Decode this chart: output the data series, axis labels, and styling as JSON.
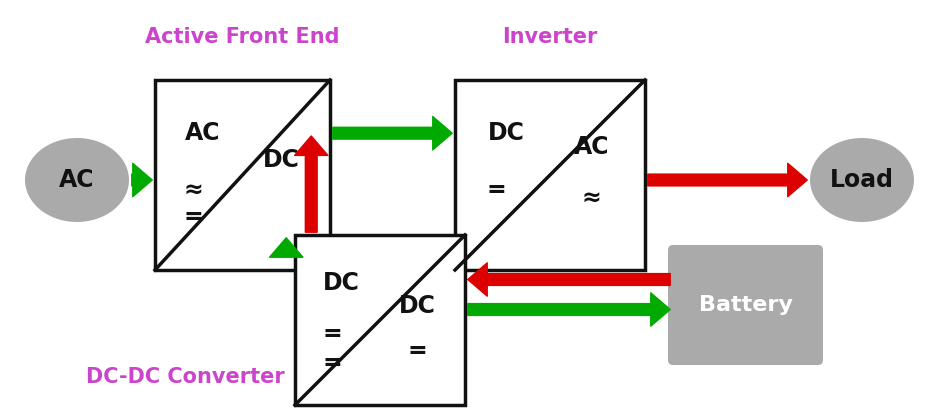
{
  "bg_color": "#ffffff",
  "title_color": "#cc44cc",
  "green": "#00aa00",
  "red": "#dd0000",
  "gray_shape": "#aaaaaa",
  "dark_gray": "#888888",
  "box_edge": "#111111",
  "text_color": "#111111",
  "white_text": "#ffffff",
  "labels": {
    "afe_title": "Active Front End",
    "inv_title": "Inverter",
    "dcdc_title": "DC-DC Converter",
    "ac_label": "AC",
    "load_label": "Load",
    "battery_label": "Battery",
    "afe_left_top": "AC",
    "afe_left_bot1": "≈",
    "afe_left_bot2": "=",
    "afe_right_top": "DC",
    "inv_left_top": "DC",
    "inv_left_bot": "=",
    "inv_right_top": "AC",
    "inv_right_bot": "≈",
    "dcdc_left_top": "DC",
    "dcdc_left_bot": "=",
    "dcdc_right_top": "DC",
    "dcdc_right_bot": "="
  }
}
